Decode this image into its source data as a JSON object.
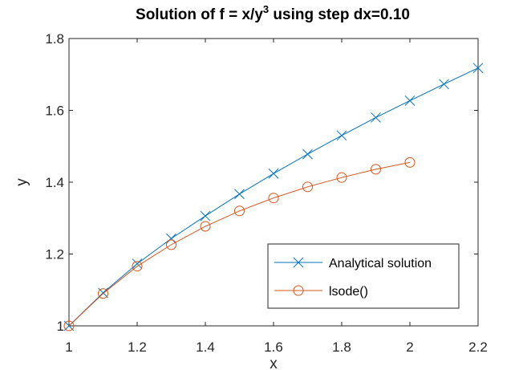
{
  "chart_data": {
    "type": "line",
    "title": "Solution of f = x/y",
    "title_superscript": "3",
    "title_suffix": " using step dx=0.10",
    "xlabel": "x",
    "ylabel": "y",
    "xlim": [
      1,
      2.2
    ],
    "ylim": [
      1,
      1.8
    ],
    "xticks": [
      1,
      1.2,
      1.4,
      1.6,
      1.8,
      2,
      2.2
    ],
    "xtick_labels": [
      "1",
      "1.2",
      "1.4",
      "1.6",
      "1.8",
      "2",
      "2.2"
    ],
    "yticks": [
      1,
      1.2,
      1.4,
      1.6,
      1.8
    ],
    "ytick_labels": [
      "1",
      "1.2",
      "1.4",
      "1.6",
      "1.8"
    ],
    "grid": false,
    "legend_position": "bottom-right",
    "series": [
      {
        "name": "Analytical solution",
        "color": "#0072BD",
        "marker": "x",
        "x": [
          1.0,
          1.1,
          1.2,
          1.3,
          1.4,
          1.5,
          1.6,
          1.7,
          1.8,
          1.9,
          2.0,
          2.1,
          2.2
        ],
        "y": [
          1.0,
          1.092,
          1.173,
          1.243,
          1.306,
          1.367,
          1.424,
          1.478,
          1.53,
          1.58,
          1.627,
          1.673,
          1.718
        ]
      },
      {
        "name": "lsode()",
        "color": "#D95319",
        "marker": "o",
        "x": [
          1.0,
          1.1,
          1.2,
          1.3,
          1.4,
          1.5,
          1.6,
          1.7,
          1.8,
          1.9,
          2.0
        ],
        "y": [
          1.0,
          1.09,
          1.166,
          1.226,
          1.277,
          1.32,
          1.356,
          1.387,
          1.413,
          1.436,
          1.455
        ]
      }
    ]
  }
}
